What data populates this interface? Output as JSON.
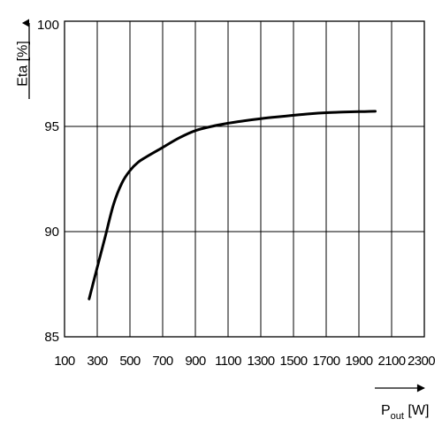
{
  "chart_data": {
    "type": "line",
    "title": "",
    "xlabel": "P",
    "xlabel_sub": "out",
    "xlabel_unit": " [W]",
    "ylabel": "Eta [%]",
    "xlim": [
      100,
      2300
    ],
    "ylim": [
      85,
      100
    ],
    "x_ticks": [
      100,
      300,
      500,
      700,
      900,
      1100,
      1300,
      1500,
      1700,
      1900,
      2100,
      2300
    ],
    "y_ticks": [
      85,
      90,
      95,
      100
    ],
    "x_gridlines": [
      300,
      500,
      700,
      900,
      1100,
      1300,
      1500,
      1700,
      1900,
      2100
    ],
    "y_gridlines": [
      90,
      95
    ],
    "grid": true,
    "legend": "none",
    "colors": {
      "line": "#000000",
      "grid": "#000000",
      "background": "#ffffff"
    },
    "series": [
      {
        "x": [
          250,
          300,
          350,
          400,
          450,
          500,
          550,
          600,
          700,
          800,
          900,
          1000,
          1100,
          1200,
          1300,
          1400,
          1500,
          1600,
          1700,
          1800,
          1900,
          2000
        ],
        "values": [
          86.8,
          88.3,
          89.8,
          91.3,
          92.3,
          92.9,
          93.3,
          93.55,
          94.0,
          94.45,
          94.8,
          95.0,
          95.15,
          95.27,
          95.37,
          95.45,
          95.53,
          95.6,
          95.65,
          95.68,
          95.7,
          95.72
        ]
      }
    ]
  }
}
